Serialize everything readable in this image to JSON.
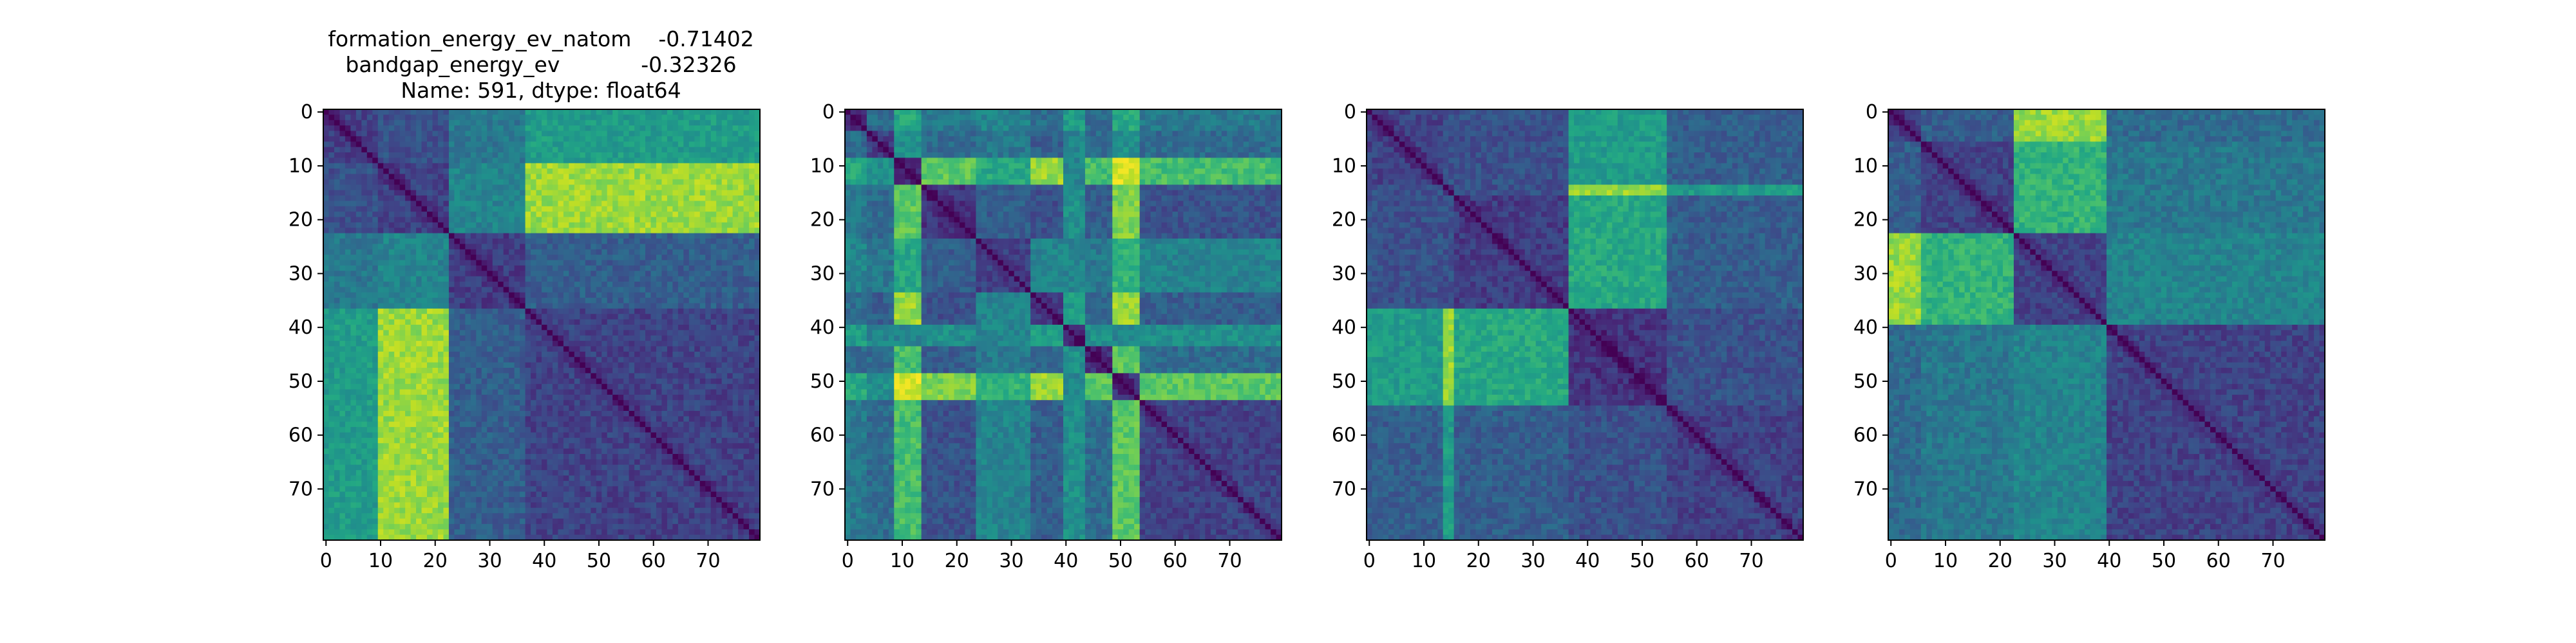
{
  "figure": {
    "background": "#ffffff",
    "colormap": "viridis",
    "title_lines": [
      "formation_energy_ev_natom    -0.71402",
      "bandgap_energy_ev            -0.32326",
      "Name: 591, dtype: float64"
    ]
  },
  "chart_data": [
    {
      "type": "heatmap",
      "size": 80,
      "xticks": [
        0,
        10,
        20,
        30,
        40,
        50,
        60,
        70
      ],
      "yticks": [
        0,
        10,
        20,
        30,
        40,
        50,
        60,
        70
      ],
      "xlim": [
        0,
        79
      ],
      "ylim": [
        79,
        0
      ],
      "title": "formation_energy_ev_natom -0.71402 / bandgap_energy_ev -0.32326 / Name: 591, dtype: float64",
      "group_boundaries": [
        0,
        10,
        23,
        37,
        80
      ],
      "group_matrix": [
        [
          0.2,
          0.25,
          0.4,
          0.55
        ],
        [
          0.25,
          0.2,
          0.45,
          0.85
        ],
        [
          0.4,
          0.45,
          0.18,
          0.3
        ],
        [
          0.55,
          0.85,
          0.3,
          0.2
        ]
      ]
    },
    {
      "type": "heatmap",
      "size": 80,
      "xticks": [
        0,
        10,
        20,
        30,
        40,
        50,
        60,
        70
      ],
      "yticks": [
        0,
        10,
        20,
        30,
        40,
        50,
        60,
        70
      ],
      "xlim": [
        0,
        79
      ],
      "ylim": [
        79,
        0
      ],
      "group_boundaries": [
        0,
        4,
        9,
        14,
        24,
        34,
        40,
        44,
        49,
        54,
        80
      ],
      "group_matrix": [
        [
          0.15,
          0.35,
          0.6,
          0.4,
          0.45,
          0.35,
          0.55,
          0.35,
          0.6,
          0.4
        ],
        [
          0.35,
          0.2,
          0.5,
          0.35,
          0.4,
          0.3,
          0.45,
          0.35,
          0.5,
          0.35
        ],
        [
          0.6,
          0.5,
          0.15,
          0.75,
          0.6,
          0.85,
          0.45,
          0.7,
          0.95,
          0.7
        ],
        [
          0.4,
          0.35,
          0.75,
          0.15,
          0.3,
          0.25,
          0.5,
          0.3,
          0.8,
          0.25
        ],
        [
          0.45,
          0.4,
          0.6,
          0.3,
          0.2,
          0.45,
          0.45,
          0.4,
          0.65,
          0.45
        ],
        [
          0.35,
          0.3,
          0.85,
          0.25,
          0.45,
          0.2,
          0.55,
          0.35,
          0.85,
          0.3
        ],
        [
          0.55,
          0.45,
          0.45,
          0.5,
          0.45,
          0.55,
          0.15,
          0.5,
          0.45,
          0.5
        ],
        [
          0.35,
          0.35,
          0.7,
          0.3,
          0.4,
          0.35,
          0.5,
          0.15,
          0.75,
          0.35
        ],
        [
          0.6,
          0.5,
          0.95,
          0.8,
          0.65,
          0.85,
          0.45,
          0.75,
          0.15,
          0.75
        ],
        [
          0.4,
          0.35,
          0.7,
          0.25,
          0.45,
          0.3,
          0.5,
          0.35,
          0.75,
          0.2
        ]
      ]
    },
    {
      "type": "heatmap",
      "size": 80,
      "xticks": [
        0,
        10,
        20,
        30,
        40,
        50,
        60,
        70
      ],
      "yticks": [
        0,
        10,
        20,
        30,
        40,
        50,
        60,
        70
      ],
      "xlim": [
        0,
        79
      ],
      "ylim": [
        79,
        0
      ],
      "group_boundaries": [
        0,
        14,
        16,
        37,
        55,
        80
      ],
      "group_matrix": [
        [
          0.2,
          0.25,
          0.25,
          0.55,
          0.3
        ],
        [
          0.25,
          0.15,
          0.25,
          0.85,
          0.55
        ],
        [
          0.25,
          0.25,
          0.18,
          0.6,
          0.3
        ],
        [
          0.55,
          0.85,
          0.6,
          0.15,
          0.25
        ],
        [
          0.3,
          0.55,
          0.3,
          0.25,
          0.2
        ]
      ]
    },
    {
      "type": "heatmap",
      "size": 80,
      "xticks": [
        0,
        10,
        20,
        30,
        40,
        50,
        60,
        70
      ],
      "yticks": [
        0,
        10,
        20,
        30,
        40,
        50,
        60,
        70
      ],
      "xlim": [
        0,
        79
      ],
      "ylim": [
        79,
        0
      ],
      "group_boundaries": [
        0,
        6,
        23,
        40,
        80
      ],
      "group_matrix": [
        [
          0.2,
          0.3,
          0.85,
          0.35
        ],
        [
          0.3,
          0.2,
          0.65,
          0.4
        ],
        [
          0.85,
          0.65,
          0.2,
          0.45
        ],
        [
          0.35,
          0.4,
          0.45,
          0.2
        ]
      ]
    }
  ]
}
